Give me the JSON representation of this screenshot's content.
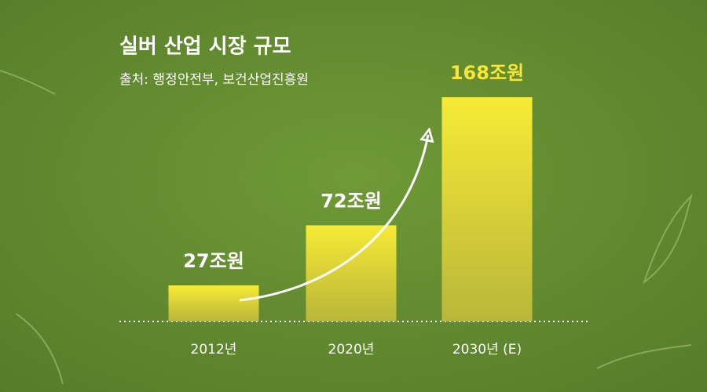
{
  "chart_data": {
    "type": "bar",
    "title": "실버 산업 시장 규모",
    "subtitle": "출처: 행정안전부, 보건산업진흥원",
    "categories": [
      "2012년",
      "2020년",
      "2030년 (E)"
    ],
    "values": [
      27,
      72,
      168
    ],
    "value_labels": [
      "27조원",
      "72조원",
      "168조원"
    ],
    "color": "#f5e534",
    "value_label_colors": [
      "#ffffff",
      "#ffffff",
      "#f7e637"
    ]
  }
}
